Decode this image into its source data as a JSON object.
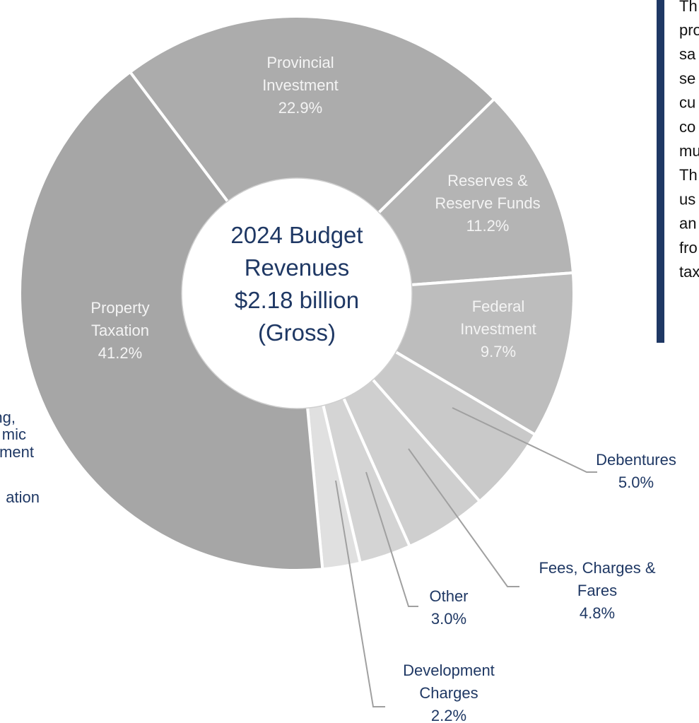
{
  "chart_data": {
    "type": "donut",
    "title": "2024 Budget Revenues $2.18 billion (Gross)",
    "categories": [
      "Provincial Investment",
      "Reserves & Reserve Funds",
      "Federal Investment",
      "Debentures",
      "Fees, Charges & Fares",
      "Other",
      "Development Charges",
      "Property Taxation"
    ],
    "values": [
      22.9,
      11.2,
      9.7,
      5.0,
      4.8,
      3.0,
      2.2,
      41.2
    ],
    "value_labels": [
      "22.9%",
      "11.2%",
      "9.7%",
      "5.0%",
      "4.8%",
      "3.0%",
      "2.2%",
      "41.2%"
    ],
    "colors": [
      "#acacac",
      "#b4b4b4",
      "#bdbdbd",
      "#c9c9c9",
      "#cfcfcf",
      "#d4d4d4",
      "#e0e0e0",
      "#a6a6a6"
    ],
    "annotations_left": [
      "ng,",
      "mic",
      "ment",
      "ation"
    ],
    "annotations_right": [
      "Th",
      "pro",
      "sa",
      "se",
      "cu",
      "co",
      "mu",
      "Th",
      "us",
      "an",
      "fro",
      "tax"
    ]
  }
}
